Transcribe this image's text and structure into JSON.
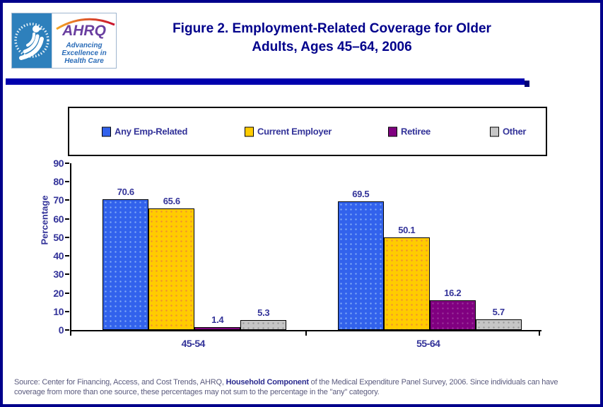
{
  "header": {
    "title_line1": "Figure 2. Employment-Related Coverage for Older",
    "title_line2": "Adults, Ages 45–64, 2006",
    "logo": {
      "org_abbr": "AHRQ",
      "tagline_line1": "Advancing",
      "tagline_line2": "Excellence in",
      "tagline_line3": "Health Care"
    }
  },
  "chart_data": {
    "type": "bar",
    "title": "Figure 2. Employment-Related Coverage for Older Adults, Ages 45–64, 2006",
    "categories": [
      "45-54",
      "55-64"
    ],
    "series": [
      {
        "name": "Any Emp-Related",
        "color": "#3262EC",
        "dot_color": "#7FA8F5",
        "values": [
          70.6,
          69.5
        ]
      },
      {
        "name": "Current Employer",
        "color": "#FFCC00",
        "dot_color": "#F09030",
        "values": [
          65.6,
          50.1
        ]
      },
      {
        "name": "Retiree",
        "color": "#800080",
        "dot_color": "#9A339A",
        "values": [
          1.4,
          16.2
        ]
      },
      {
        "name": "Other",
        "color": "#C6C6C6",
        "dot_color": "#989898",
        "values": [
          5.3,
          5.7
        ]
      }
    ],
    "xlabel": "",
    "ylabel": "Percentage",
    "ylim": [
      0,
      90
    ],
    "ytick_interval": 10,
    "grid": false,
    "legend_position": "top"
  },
  "colors": {
    "page_border": "#00008B",
    "title_text": "#00008B",
    "chart_text": "#333399",
    "banner_bar": "#0000AD",
    "hhs_logo_blue": "#2E80BC",
    "ahrq_purple": "#6A3FA0",
    "tagline_blue": "#2A6CB8"
  },
  "footer": {
    "source_prefix": "Source: Center for Financing, Access, and Cost Trends, AHRQ, ",
    "source_bold": "Household Component",
    "source_suffix": " of the Medical Expenditure Panel Survey, 2006. Since individuals can have",
    "source_line2": "coverage from more than one source, these percentages may not sum to the percentage in the \"any\" category."
  }
}
